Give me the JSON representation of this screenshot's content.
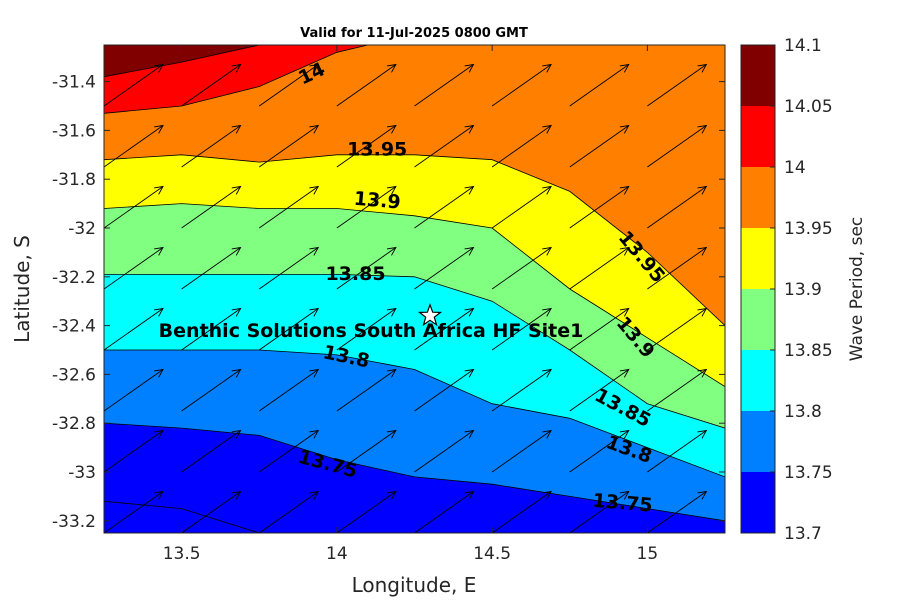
{
  "chart_data": {
    "type": "heatmap",
    "title": "Valid for 11-Jul-2025 0800 GMT",
    "xlabel": "Longitude, E",
    "ylabel": "Latitude, S",
    "colorbar_label": "Wave Period, sec",
    "xlim": [
      13.25,
      15.25
    ],
    "ylim": [
      -33.25,
      -31.25
    ],
    "x_ticks": [
      13.5,
      14,
      14.5,
      15
    ],
    "x_tick_labels": [
      "13.5",
      "14",
      "14.5",
      "15"
    ],
    "y_ticks": [
      -31.4,
      -31.6,
      -31.8,
      -32,
      -32.2,
      -32.4,
      -32.6,
      -32.8,
      -33,
      -33.2
    ],
    "y_tick_labels": [
      "-31.4",
      "-31.6",
      "-31.8",
      "-32",
      "-32.2",
      "-32.4",
      "-32.6",
      "-32.8",
      "-33",
      "-33.2"
    ],
    "colorbar": {
      "range": [
        13.7,
        14.1
      ],
      "ticks": [
        14.1,
        14.05,
        14,
        13.95,
        13.9,
        13.85,
        13.8,
        13.75,
        13.7
      ],
      "tick_labels": [
        "14.1",
        "14.05",
        "14",
        "13.95",
        "13.9",
        "13.85",
        "13.8",
        "13.75",
        "13.7"
      ]
    },
    "contour_levels": [
      {
        "min": 13.7,
        "max": 13.75,
        "color": "#0000ff"
      },
      {
        "min": 13.75,
        "max": 13.8,
        "color": "#0080ff"
      },
      {
        "min": 13.8,
        "max": 13.85,
        "color": "#00ffff"
      },
      {
        "min": 13.85,
        "max": 13.9,
        "color": "#80ff80"
      },
      {
        "min": 13.9,
        "max": 13.95,
        "color": "#ffff00"
      },
      {
        "min": 13.95,
        "max": 14.0,
        "color": "#ff8000"
      },
      {
        "min": 14.0,
        "max": 14.05,
        "color": "#ff0000"
      },
      {
        "min": 14.05,
        "max": 14.1,
        "color": "#800000"
      }
    ],
    "contours": [
      {
        "level": 14.05,
        "points": [
          [
            13.25,
            -31.38
          ],
          [
            13.5,
            -31.32
          ],
          [
            13.75,
            -31.25
          ]
        ]
      },
      {
        "level": 14.0,
        "points": [
          [
            13.25,
            -31.53
          ],
          [
            13.5,
            -31.5
          ],
          [
            13.75,
            -31.42
          ],
          [
            14.0,
            -31.28
          ],
          [
            14.1,
            -31.25
          ]
        ]
      },
      {
        "level": 13.95,
        "points": [
          [
            13.25,
            -31.72
          ],
          [
            13.5,
            -31.7
          ],
          [
            13.75,
            -31.73
          ],
          [
            14.0,
            -31.7
          ],
          [
            14.25,
            -31.7
          ],
          [
            14.5,
            -31.72
          ],
          [
            14.75,
            -31.85
          ],
          [
            15.0,
            -32.1
          ],
          [
            15.25,
            -32.4
          ]
        ]
      },
      {
        "level": 13.9,
        "points": [
          [
            13.25,
            -31.92
          ],
          [
            13.5,
            -31.9
          ],
          [
            13.75,
            -31.92
          ],
          [
            14.0,
            -31.92
          ],
          [
            14.25,
            -31.95
          ],
          [
            14.5,
            -32.0
          ],
          [
            14.75,
            -32.25
          ],
          [
            15.0,
            -32.45
          ],
          [
            15.25,
            -32.65
          ]
        ]
      },
      {
        "level": 13.85,
        "points": [
          [
            13.25,
            -32.19
          ],
          [
            13.5,
            -32.19
          ],
          [
            13.75,
            -32.19
          ],
          [
            14.0,
            -32.19
          ],
          [
            14.25,
            -32.2
          ],
          [
            14.5,
            -32.3
          ],
          [
            14.75,
            -32.5
          ],
          [
            15.0,
            -32.72
          ],
          [
            15.25,
            -32.82
          ]
        ]
      },
      {
        "level": 13.8,
        "points": [
          [
            13.25,
            -32.5
          ],
          [
            13.5,
            -32.5
          ],
          [
            13.75,
            -32.5
          ],
          [
            14.0,
            -32.52
          ],
          [
            14.25,
            -32.58
          ],
          [
            14.5,
            -32.72
          ],
          [
            14.75,
            -32.78
          ],
          [
            15.0,
            -32.9
          ],
          [
            15.25,
            -33.02
          ]
        ]
      },
      {
        "level": 13.75,
        "points": [
          [
            13.25,
            -32.8
          ],
          [
            13.5,
            -32.82
          ],
          [
            13.75,
            -32.85
          ],
          [
            14.0,
            -32.95
          ],
          [
            14.25,
            -33.02
          ],
          [
            14.5,
            -33.05
          ],
          [
            14.75,
            -33.1
          ],
          [
            15.0,
            -33.15
          ],
          [
            15.25,
            -33.2
          ]
        ]
      },
      {
        "level": 13.7,
        "points": [
          [
            13.25,
            -33.12
          ],
          [
            13.5,
            -33.15
          ],
          [
            13.75,
            -33.25
          ]
        ]
      }
    ],
    "contour_labels": [
      {
        "text": "14",
        "x": 13.92,
        "y": -31.37,
        "angle": -25
      },
      {
        "text": "13.95",
        "x": 14.13,
        "y": -31.68,
        "angle": 0
      },
      {
        "text": "13.9",
        "x": 14.13,
        "y": -31.89,
        "angle": 5
      },
      {
        "text": "13.85",
        "x": 14.06,
        "y": -32.19,
        "angle": 0
      },
      {
        "text": "13.8",
        "x": 14.03,
        "y": -32.53,
        "angle": 12
      },
      {
        "text": "13.75",
        "x": 13.97,
        "y": -32.97,
        "angle": 15
      },
      {
        "text": "13.95",
        "x": 14.98,
        "y": -32.12,
        "angle": 50
      },
      {
        "text": "13.9",
        "x": 14.96,
        "y": -32.45,
        "angle": 50
      },
      {
        "text": "13.85",
        "x": 14.92,
        "y": -32.74,
        "angle": 28
      },
      {
        "text": "13.8",
        "x": 14.94,
        "y": -32.91,
        "angle": 20
      },
      {
        "text": "13.75",
        "x": 14.92,
        "y": -33.13,
        "angle": 5
      }
    ],
    "site": {
      "label": "Benthic Solutions South Africa HF Site1",
      "lon": 14.3,
      "lat": -32.36
    },
    "vector_field": {
      "direction": "northeast",
      "lons": [
        13.25,
        13.5,
        13.75,
        14.0,
        14.25,
        14.5,
        14.75,
        15.0,
        15.25
      ],
      "lats": [
        -31.25,
        -31.5,
        -31.75,
        -32.0,
        -32.25,
        -32.5,
        -32.75,
        -33.0,
        -33.25
      ],
      "u": 0.19,
      "v": 0.17
    }
  }
}
